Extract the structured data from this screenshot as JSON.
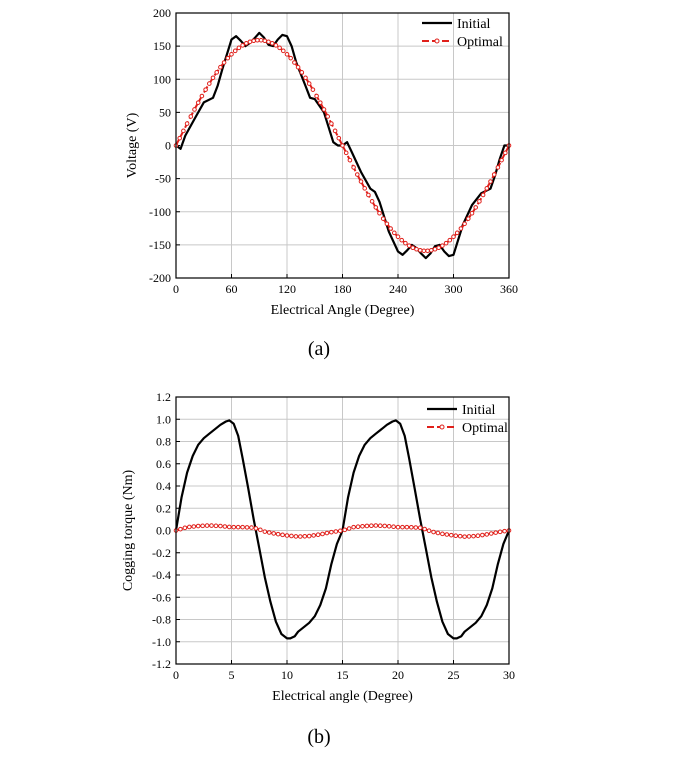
{
  "chart_data": [
    {
      "type": "line",
      "xlabel": "Electrical Angle (Degree)",
      "ylabel": "Voltage (V)",
      "xlim": [
        0,
        360
      ],
      "ylim": [
        -200,
        200
      ],
      "xticks": [
        0,
        60,
        120,
        180,
        240,
        300,
        360
      ],
      "yticks": [
        -200,
        -150,
        -100,
        -50,
        0,
        50,
        100,
        150,
        200
      ],
      "grid": true,
      "legend_position": "top-right",
      "caption": "(a)",
      "series": [
        {
          "name": "Initial",
          "color": "#000000",
          "style": "solid",
          "x": [
            0,
            5,
            10,
            20,
            30,
            40,
            45,
            50,
            60,
            65,
            70,
            75,
            80,
            85,
            90,
            95,
            100,
            105,
            110,
            115,
            120,
            125,
            130,
            140,
            145,
            150,
            160,
            170,
            175,
            180,
            185,
            190,
            200,
            210,
            215,
            220,
            230,
            240,
            245,
            250,
            255,
            260,
            265,
            270,
            275,
            280,
            285,
            290,
            295,
            300,
            310,
            320,
            330,
            340,
            345,
            350,
            355,
            360
          ],
          "y": [
            0,
            -5,
            15,
            40,
            65,
            72,
            90,
            115,
            160,
            165,
            158,
            150,
            155,
            162,
            170,
            163,
            152,
            150,
            160,
            167,
            165,
            150,
            125,
            90,
            72,
            70,
            50,
            5,
            0,
            0,
            5,
            -10,
            -40,
            -65,
            -70,
            -85,
            -130,
            -160,
            -165,
            -158,
            -150,
            -155,
            -163,
            -170,
            -163,
            -152,
            -150,
            -160,
            -167,
            -165,
            -120,
            -90,
            -72,
            -65,
            -45,
            -20,
            0,
            0
          ]
        },
        {
          "name": "Optimal",
          "color": "#e0201b",
          "style": "dashed-marker",
          "function": "159*sin(x)"
        }
      ]
    },
    {
      "type": "line",
      "xlabel": "Electrical angle (Degree)",
      "ylabel": "Cogging torque (Nm)",
      "xlim": [
        0,
        30
      ],
      "ylim": [
        -1.2,
        1.2
      ],
      "xticks": [
        0,
        5,
        10,
        15,
        20,
        25,
        30
      ],
      "yticks": [
        -1.2,
        -1.0,
        -0.8,
        -0.6,
        -0.4,
        -0.2,
        0.0,
        0.2,
        0.4,
        0.6,
        0.8,
        1.0,
        1.2
      ],
      "grid": true,
      "legend_position": "top-right",
      "caption": "(b)",
      "series": [
        {
          "name": "Initial",
          "color": "#000000",
          "style": "solid",
          "x": [
            0,
            0.5,
            1,
            1.5,
            2,
            2.5,
            3,
            3.5,
            4,
            4.5,
            4.8,
            5.2,
            5.6,
            6,
            6.5,
            7,
            7.5,
            8,
            8.5,
            9,
            9.5,
            10,
            10.3,
            10.7,
            11,
            11.5,
            12,
            12.5,
            13,
            13.5,
            14,
            14.5,
            15
          ],
          "y": [
            0,
            0.3,
            0.52,
            0.67,
            0.77,
            0.83,
            0.87,
            0.91,
            0.95,
            0.98,
            0.99,
            0.96,
            0.85,
            0.65,
            0.38,
            0.1,
            -0.16,
            -0.42,
            -0.64,
            -0.82,
            -0.93,
            -0.97,
            -0.97,
            -0.95,
            -0.91,
            -0.87,
            -0.83,
            -0.77,
            -0.67,
            -0.52,
            -0.3,
            -0.12,
            0
          ]
        },
        {
          "name": "Optimal",
          "color": "#e0201b",
          "style": "dashed-marker",
          "x": [
            0,
            1,
            2,
            3,
            4,
            5,
            6,
            7,
            7.5,
            8,
            9,
            10,
            11,
            12,
            13,
            14,
            15
          ],
          "y": [
            0,
            0.03,
            0.04,
            0.045,
            0.04,
            0.03,
            0.03,
            0.025,
            0.01,
            -0.01,
            -0.03,
            -0.045,
            -0.055,
            -0.05,
            -0.035,
            -0.015,
            0
          ]
        }
      ]
    }
  ]
}
